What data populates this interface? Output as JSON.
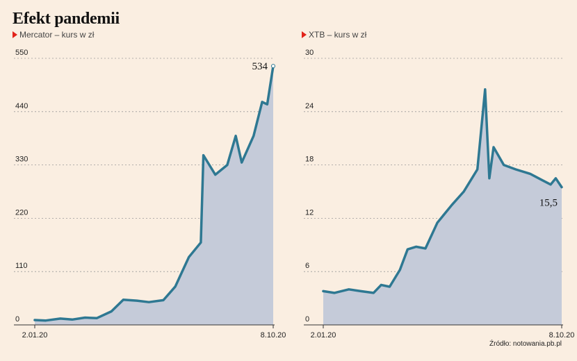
{
  "title": "Efekt pandemii",
  "source": "Źródło: notowania.pb.pl",
  "colors": {
    "line": "#2e7892",
    "area": "#c5cbd9",
    "grid": "#999999",
    "background": "#faeee1",
    "marker": "#e2231a"
  },
  "chart_data": [
    {
      "type": "area",
      "subtitle": "Mercator – kurs w zł",
      "ylim": [
        0,
        550
      ],
      "yticks": [
        0,
        110,
        220,
        330,
        440,
        550
      ],
      "xtick_labels": [
        "2.01.20",
        "8.10.20"
      ],
      "end_label": "534",
      "grid": true,
      "x": [
        "2.01.20",
        "15.01.20",
        "1.02.20",
        "15.02.20",
        "1.03.20",
        "15.03.20",
        "1.04.20",
        "15.04.20",
        "1.05.20",
        "15.05.20",
        "1.06.20",
        "15.06.20",
        "1.07.20",
        "15.07.20",
        "18.07.20",
        "1.08.20",
        "15.08.20",
        "25.08.20",
        "1.09.20",
        "15.09.20",
        "25.09.20",
        "1.10.20",
        "8.10.20"
      ],
      "values": [
        10,
        9,
        13,
        11,
        15,
        14,
        28,
        52,
        50,
        47,
        51,
        79,
        140,
        170,
        350,
        310,
        330,
        390,
        335,
        390,
        460,
        455,
        534
      ]
    },
    {
      "type": "area",
      "subtitle": "XTB – kurs w zł",
      "ylim": [
        0,
        30
      ],
      "yticks": [
        0,
        6,
        12,
        18,
        24,
        30
      ],
      "xtick_labels": [
        "2.01.20",
        "8.10.20"
      ],
      "end_label": "15,5",
      "grid": true,
      "x": [
        "2.01.20",
        "15.01.20",
        "1.02.20",
        "15.02.20",
        "1.03.20",
        "10.03.20",
        "20.03.20",
        "1.04.20",
        "10.04.20",
        "20.04.20",
        "1.05.20",
        "15.05.20",
        "1.06.20",
        "15.06.20",
        "1.07.20",
        "10.07.20",
        "15.07.20",
        "20.07.20",
        "1.08.20",
        "15.08.20",
        "1.09.20",
        "15.09.20",
        "25.09.20",
        "1.10.20",
        "8.10.20"
      ],
      "values": [
        3.8,
        3.6,
        4.0,
        3.8,
        3.6,
        4.5,
        4.3,
        6.2,
        8.5,
        8.8,
        8.6,
        11.5,
        13.5,
        15.0,
        17.5,
        26.5,
        16.5,
        20.0,
        18.0,
        17.5,
        17.0,
        16.3,
        15.8,
        16.5,
        15.5
      ]
    }
  ]
}
